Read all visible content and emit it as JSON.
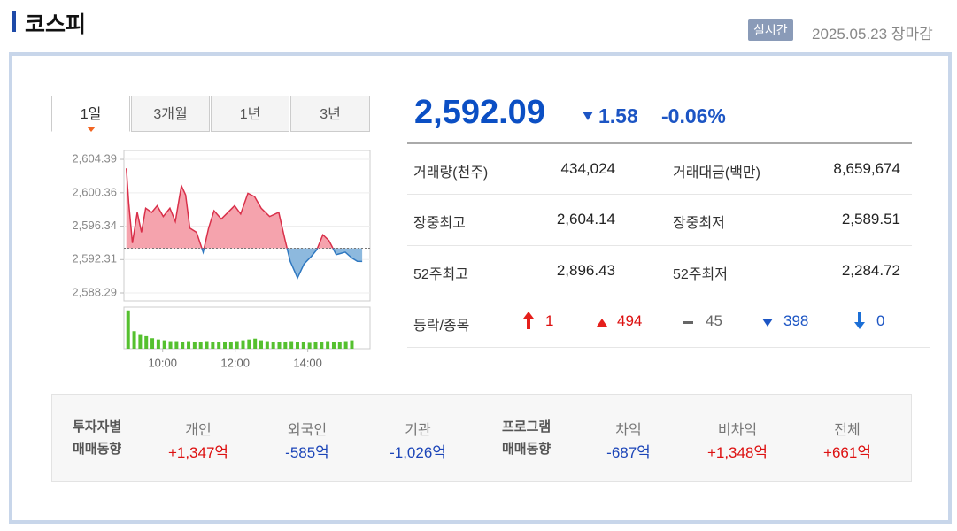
{
  "header": {
    "title": "코스피",
    "badge": "실시간",
    "date": "2025.05.23 장마감"
  },
  "tabs": [
    "1일",
    "3개월",
    "1년",
    "3년"
  ],
  "chart_data": {
    "type": "line",
    "x": [
      540,
      544,
      550,
      558,
      565,
      572,
      582,
      591,
      601,
      612,
      621,
      631,
      638,
      645,
      656,
      667,
      676,
      685,
      697,
      708,
      719,
      729,
      741,
      752,
      763,
      777,
      792,
      802,
      811,
      823,
      834,
      846,
      855,
      865,
      875,
      887,
      902,
      913,
      922,
      930
    ],
    "values": [
      2603.3,
      2599.1,
      2594.3,
      2598.0,
      2595.6,
      2598.5,
      2598.0,
      2598.8,
      2597.5,
      2598.5,
      2596.9,
      2601.2,
      2600.1,
      2596.1,
      2595.6,
      2593.2,
      2596.1,
      2598.2,
      2597.2,
      2598.0,
      2598.8,
      2597.8,
      2600.3,
      2599.9,
      2598.5,
      2597.5,
      2598.0,
      2594.8,
      2592.1,
      2590.1,
      2591.8,
      2592.7,
      2593.5,
      2595.3,
      2594.6,
      2592.9,
      2593.2,
      2592.5,
      2592.1,
      2592.09
    ],
    "reference_line": 2593.67,
    "up_color": "#d9304a",
    "down_color": "#2f78c0",
    "xlim": [
      536,
      943
    ],
    "ylim": [
      2587.33,
      2605.46
    ],
    "xticks": [
      {
        "value": 600,
        "label": "10:00"
      },
      {
        "value": 720,
        "label": "12:00"
      },
      {
        "value": 840,
        "label": "14:00"
      }
    ],
    "yticks": [
      {
        "value": 2604.39,
        "label": "2,604.39"
      },
      {
        "value": 2600.36,
        "label": "2,600.36"
      },
      {
        "value": 2596.34,
        "label": "2,596.34"
      },
      {
        "value": 2592.31,
        "label": "2,592.31"
      },
      {
        "value": 2588.29,
        "label": "2,588.29"
      }
    ],
    "grid": true,
    "volume": {
      "color": "#55c02f",
      "x": [
        540,
        550,
        560,
        570,
        580,
        590,
        600,
        610,
        620,
        630,
        640,
        650,
        660,
        670,
        680,
        690,
        700,
        710,
        720,
        730,
        740,
        750,
        760,
        770,
        780,
        790,
        800,
        810,
        820,
        830,
        840,
        850,
        860,
        870,
        880,
        890,
        900,
        910
      ],
      "values": [
        92,
        42,
        35,
        30,
        25,
        22,
        20,
        18,
        18,
        16,
        18,
        17,
        16,
        18,
        15,
        16,
        15,
        17,
        18,
        20,
        22,
        24,
        20,
        18,
        16,
        17,
        16,
        18,
        16,
        15,
        14,
        16,
        17,
        18,
        16,
        17,
        18,
        20
      ],
      "ylim": [
        0,
        100
      ]
    }
  },
  "quote": {
    "price": "2,592.09",
    "change": "1.58",
    "change_rate": "-0.06%"
  },
  "stats": {
    "rows": [
      [
        "거래량(천주)",
        "434,024",
        "거래대금(백만)",
        "8,659,674"
      ],
      [
        "장중최고",
        "2,604.14",
        "장중최저",
        "2,589.51"
      ],
      [
        "52주최고",
        "2,896.43",
        "52주최저",
        "2,284.72"
      ]
    ]
  },
  "breadth": {
    "label": "등락/종목",
    "items": [
      "1",
      "494",
      "45",
      "398",
      "0"
    ]
  },
  "investors": {
    "groups": [
      {
        "title": [
          "투자자별",
          "매매동향"
        ],
        "items": [
          {
            "name": "개인",
            "value": "+1,347억"
          },
          {
            "name": "외국인",
            "value": "-585억"
          },
          {
            "name": "기관",
            "value": "-1,026억"
          }
        ]
      },
      {
        "title": [
          "프로그램",
          "매매동향"
        ],
        "items": [
          {
            "name": "차익",
            "value": "-687억"
          },
          {
            "name": "비차익",
            "value": "+1,348억"
          },
          {
            "name": "전체",
            "value": "+661억"
          }
        ]
      }
    ]
  }
}
